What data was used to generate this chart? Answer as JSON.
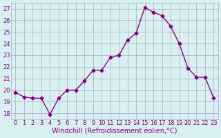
{
  "x": [
    0,
    1,
    2,
    3,
    4,
    5,
    6,
    7,
    8,
    9,
    10,
    11,
    12,
    13,
    14,
    15,
    16,
    17,
    18,
    19,
    20,
    21,
    22,
    23
  ],
  "y": [
    19.8,
    19.4,
    19.3,
    19.3,
    17.9,
    19.3,
    20.0,
    20.0,
    20.8,
    21.7,
    21.7,
    22.8,
    23.0,
    24.3,
    24.9,
    27.1,
    26.7,
    26.4,
    25.5,
    24.0,
    21.9,
    21.1,
    21.1,
    19.3
  ],
  "line_color": "#880088",
  "marker": "D",
  "marker_size": 2.5,
  "bg_color": "#d8f0f0",
  "grid_color": "#aaaacc",
  "xlabel": "Windchill (Refroidissement éolien,°C)",
  "xlabel_color": "#880088",
  "ylim": [
    17.5,
    27.5
  ],
  "xlim": [
    -0.5,
    23.5
  ],
  "yticks": [
    18,
    19,
    20,
    21,
    22,
    23,
    24,
    25,
    26,
    27
  ],
  "xticks": [
    0,
    1,
    2,
    3,
    4,
    5,
    6,
    7,
    8,
    9,
    10,
    11,
    12,
    13,
    14,
    15,
    16,
    17,
    18,
    19,
    20,
    21,
    22,
    23
  ],
  "tick_color": "#880088",
  "tick_fontsize": 6,
  "xlabel_fontsize": 7,
  "line_width": 1.0
}
